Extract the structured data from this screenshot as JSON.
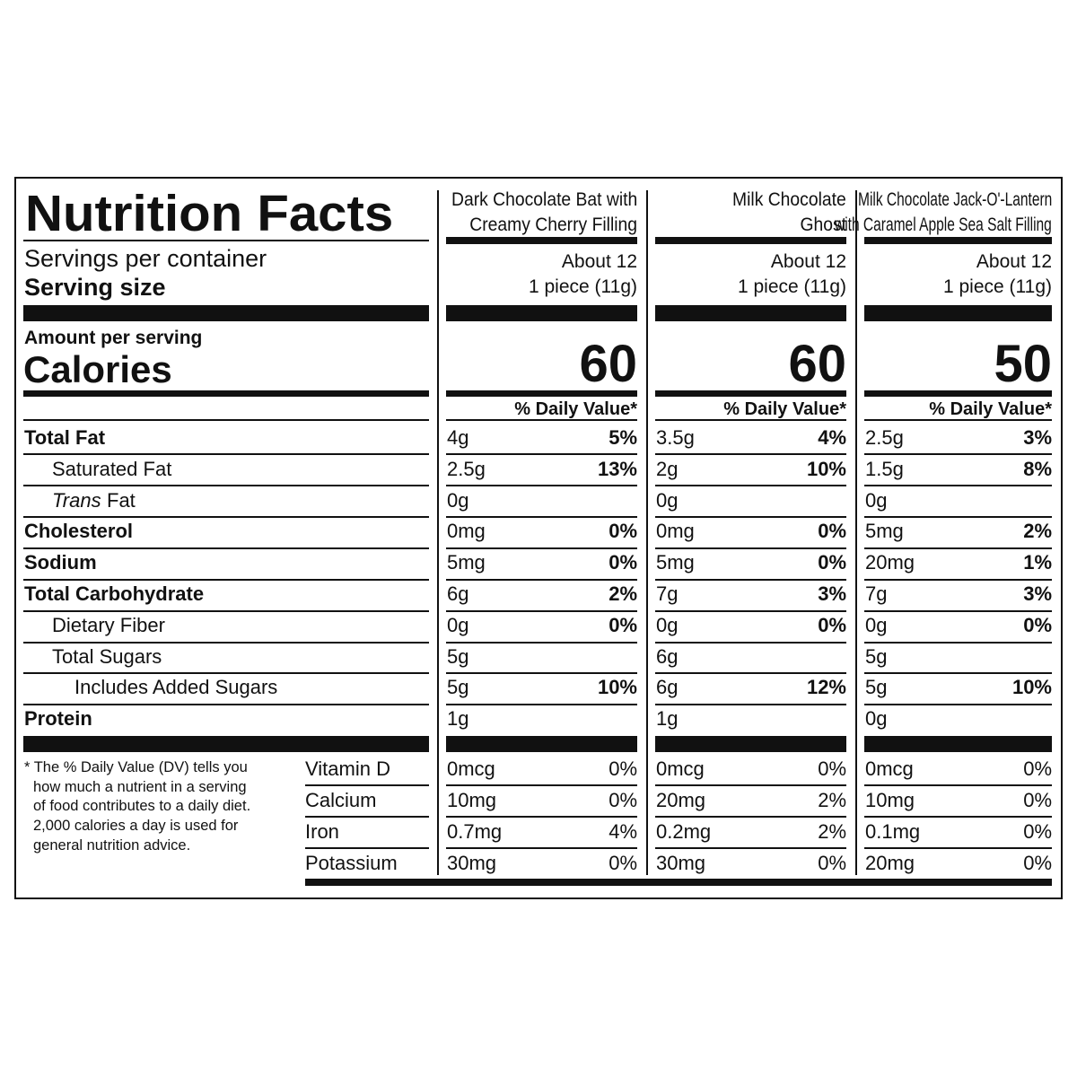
{
  "title": "Nutrition Facts",
  "servings_label": "Servings per container",
  "serving_size_label": "Serving size",
  "amount_per_serving_label": "Amount per serving",
  "calories_label": "Calories",
  "daily_value_header": "% Daily Value*",
  "nutrient_names": [
    "Total Fat",
    "Saturated Fat",
    {
      "italic": "Trans",
      "text": "Fat"
    },
    "Cholesterol",
    "Sodium",
    "Total Carbohydrate",
    "Dietary Fiber",
    "Total Sugars",
    "Includes Added Sugars",
    "Protein"
  ],
  "footnote_lines": [
    "* The % Daily Value (DV) tells you",
    "how much a nutrient in a serving",
    "of food contributes to a daily diet.",
    "2,000 calories a day is used for",
    "general nutrition advice."
  ],
  "vitamin_names": [
    "Vitamin D",
    "Calcium",
    "Iron",
    "Potassium"
  ],
  "products": [
    {
      "name_lines": [
        "Dark Chocolate Bat with",
        "Creamy Cherry Filling"
      ],
      "servings": "About 12",
      "serving_size": "1 piece (11g)",
      "calories": "60",
      "nutrients": [
        [
          "4g",
          "5%"
        ],
        [
          "2.5g",
          "13%"
        ],
        [
          "0g",
          null
        ],
        [
          "0mg",
          "0%"
        ],
        [
          "5mg",
          "0%"
        ],
        [
          "6g",
          "2%"
        ],
        [
          "0g",
          "0%"
        ],
        [
          "5g",
          null
        ],
        [
          "5g",
          "10%"
        ],
        [
          "1g",
          null
        ]
      ],
      "vitamins": [
        [
          "0mcg",
          "0%"
        ],
        [
          "10mg",
          "0%"
        ],
        [
          "0.7mg",
          "4%"
        ],
        [
          "30mg",
          "0%"
        ]
      ]
    },
    {
      "name_lines": [
        "Milk Chocolate",
        "Ghost"
      ],
      "servings": "About 12",
      "serving_size": "1 piece (11g)",
      "calories": "60",
      "nutrients": [
        [
          "3.5g",
          "4%"
        ],
        [
          "2g",
          "10%"
        ],
        [
          "0g",
          null
        ],
        [
          "0mg",
          "0%"
        ],
        [
          "5mg",
          "0%"
        ],
        [
          "7g",
          "3%"
        ],
        [
          "0g",
          "0%"
        ],
        [
          "6g",
          null
        ],
        [
          "6g",
          "12%"
        ],
        [
          "1g",
          null
        ]
      ],
      "vitamins": [
        [
          "0mcg",
          "0%"
        ],
        [
          "20mg",
          "2%"
        ],
        [
          "0.2mg",
          "2%"
        ],
        [
          "30mg",
          "0%"
        ]
      ]
    },
    {
      "name_lines": [
        "Milk Chocolate Jack-O'-Lantern",
        "with Caramel Apple Sea Salt Filling"
      ],
      "servings": "About 12",
      "serving_size": "1 piece (11g)",
      "calories": "50",
      "nutrients": [
        [
          "2.5g",
          "3%"
        ],
        [
          "1.5g",
          "8%"
        ],
        [
          "0g",
          null
        ],
        [
          "5mg",
          "2%"
        ],
        [
          "20mg",
          "1%"
        ],
        [
          "7g",
          "3%"
        ],
        [
          "0g",
          "0%"
        ],
        [
          "5g",
          null
        ],
        [
          "5g",
          "10%"
        ],
        [
          "0g",
          null
        ]
      ],
      "vitamins": [
        [
          "0mcg",
          "0%"
        ],
        [
          "10mg",
          "0%"
        ],
        [
          "0.1mg",
          "0%"
        ],
        [
          "20mg",
          "0%"
        ]
      ]
    }
  ]
}
